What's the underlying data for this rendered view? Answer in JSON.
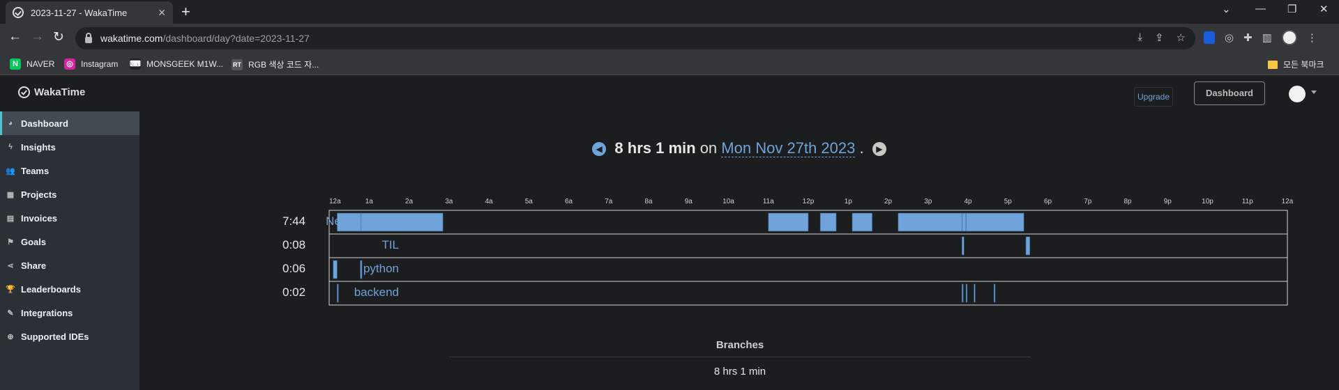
{
  "browser": {
    "tab_title": "2023-11-27 - WakaTime",
    "tab_close": "✕",
    "new_tab": "+",
    "url_host": "wakatime.com",
    "url_path": "/dashboard/day?date=2023-11-27",
    "bookmarks": [
      {
        "label": "NAVER",
        "icon": "N",
        "color": "#03c75a"
      },
      {
        "label": "Instagram",
        "icon": "◎",
        "color": "#d6249f"
      },
      {
        "label": "MONSGEEK M1W...",
        "icon": "⌨",
        "color": "#222"
      },
      {
        "label": "RGB 색상 코드 자...",
        "icon": "RT",
        "color": "#555"
      }
    ],
    "all_bookmarks": "모든 북마크"
  },
  "header": {
    "brand": "WakaTime",
    "upgrade": "Upgrade",
    "dashboard": "Dashboard"
  },
  "sidebar": {
    "items": [
      {
        "label": "Dashboard",
        "icon": "◕",
        "active": true
      },
      {
        "label": "Insights",
        "icon": "ϟ"
      },
      {
        "label": "Teams",
        "icon": "👥"
      },
      {
        "label": "Projects",
        "icon": "▦"
      },
      {
        "label": "Invoices",
        "icon": "▤"
      },
      {
        "label": "Goals",
        "icon": "⚑"
      },
      {
        "label": "Share",
        "icon": "⋖"
      },
      {
        "label": "Leaderboards",
        "icon": "🏆"
      },
      {
        "label": "Integrations",
        "icon": "✎"
      },
      {
        "label": "Supported IDEs",
        "icon": "⊕"
      }
    ]
  },
  "summary": {
    "total": "8 hrs 1 min",
    "on": "on",
    "date": "Mon Nov 27th 2023",
    "period": "."
  },
  "timeline": {
    "hour_labels": [
      "12a",
      "1a",
      "2a",
      "3a",
      "4a",
      "5a",
      "6a",
      "7a",
      "8a",
      "9a",
      "10a",
      "11a",
      "12p",
      "1p",
      "2p",
      "3p",
      "4p",
      "5p",
      "6p",
      "7p",
      "8p",
      "9p",
      "10p",
      "11p",
      "12a"
    ],
    "bar_color": "#6fa3d9",
    "rows": [
      {
        "project": "Nest-backend",
        "time": "7:44",
        "blocks": [
          [
            0.2,
            0.8
          ],
          [
            0.8,
            2.85
          ],
          [
            11,
            12
          ],
          [
            12.3,
            12.7
          ],
          [
            13.1,
            13.6
          ],
          [
            14.25,
            15.85
          ],
          [
            15.85,
            15.95
          ],
          [
            15.95,
            17.4
          ]
        ]
      },
      {
        "project": "TIL",
        "time": "0:08",
        "blocks": [
          [
            15.85,
            15.9
          ],
          [
            17.45,
            17.55
          ]
        ]
      },
      {
        "project": "python",
        "time": "0:06",
        "blocks": [
          [
            0.1,
            0.2
          ],
          [
            0.78,
            0.82
          ]
        ]
      },
      {
        "project": "backend",
        "time": "0:02",
        "blocks": [
          [
            0.2,
            0.23
          ],
          [
            15.85,
            15.88
          ],
          [
            15.95,
            15.98
          ],
          [
            16.15,
            16.18
          ],
          [
            16.65,
            16.68
          ]
        ]
      }
    ]
  },
  "branches": {
    "title": "Branches",
    "total": "8 hrs 1 min"
  }
}
